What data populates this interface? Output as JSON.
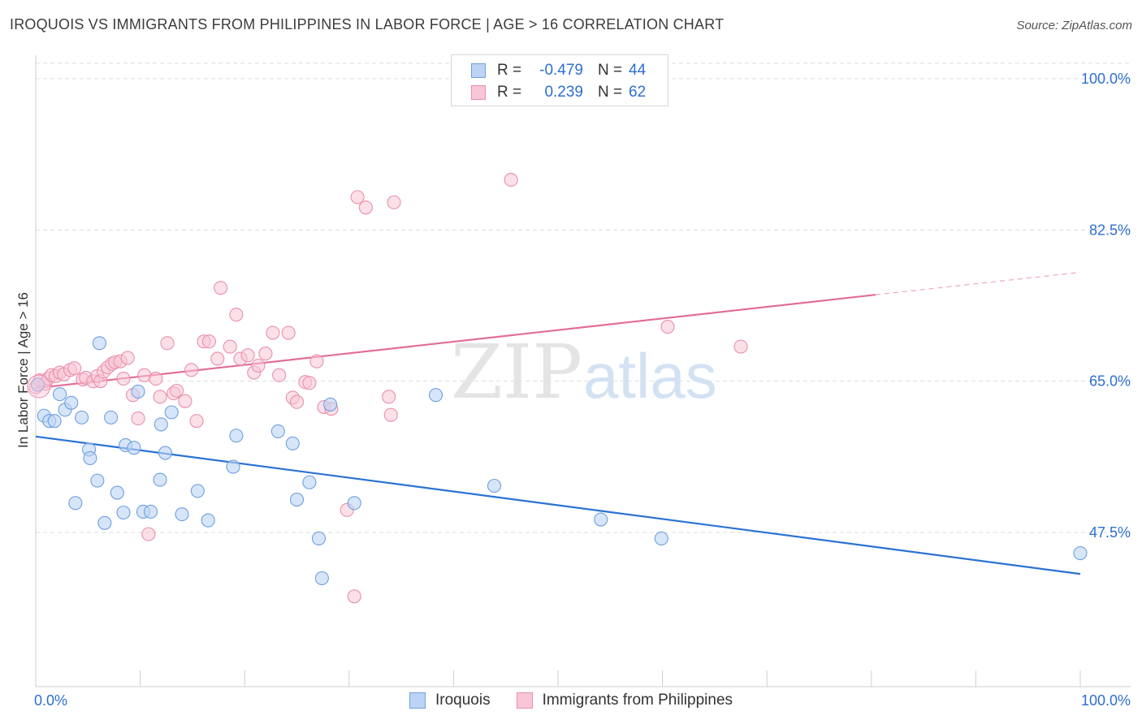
{
  "title": "IROQUOIS VS IMMIGRANTS FROM PHILIPPINES IN LABOR FORCE | AGE > 16 CORRELATION CHART",
  "source": "Source: ZipAtlas.com",
  "watermark": {
    "zip": "ZIP",
    "atlas": "atlas"
  },
  "colors": {
    "blue_fill": "#bcd4f4",
    "blue_stroke": "#6e9fe0",
    "blue_line": "#2a72d4",
    "pink_fill": "#f8c6d6",
    "pink_stroke": "#ea8fab",
    "pink_line": "#e26d98",
    "tick_label": "#2e6fd0",
    "grid": "#dcdcdc"
  },
  "legend": {
    "rows": [
      {
        "r_label": "R =",
        "r_value": "-0.479",
        "n_label": "N =",
        "n_value": "44"
      },
      {
        "r_label": "R =",
        "r_value": "0.239",
        "n_label": "N =",
        "n_value": "62"
      }
    ]
  },
  "bottom_legend": [
    "Iroquois",
    "Immigrants from Philippines"
  ],
  "chart_data": {
    "type": "scatter",
    "xlabel": "",
    "ylabel": "In Labor Force | Age > 16",
    "xlim": [
      0,
      100
    ],
    "ylim": [
      35,
      100
    ],
    "x_tick_labels": [
      "0.0%",
      "100.0%"
    ],
    "y_ticks": [
      100,
      82.5,
      65,
      47.5
    ],
    "y_tick_labels": [
      "100.0%",
      "82.5%",
      "65.0%",
      "47.5%"
    ],
    "grid": true,
    "series": [
      {
        "name": "Iroquois",
        "trend": {
          "x0": 0,
          "y0": 58.6,
          "x1": 100,
          "y1": 42.7
        },
        "points": [
          [
            0.2,
            64.6
          ],
          [
            0.8,
            61.0
          ],
          [
            1.3,
            60.4
          ],
          [
            1.8,
            60.4
          ],
          [
            2.3,
            63.5
          ],
          [
            2.8,
            61.7
          ],
          [
            3.4,
            62.5
          ],
          [
            4.4,
            60.8
          ],
          [
            5.1,
            57.1
          ],
          [
            5.2,
            56.1
          ],
          [
            5.9,
            53.5
          ],
          [
            6.1,
            69.4
          ],
          [
            6.6,
            48.6
          ],
          [
            7.2,
            60.8
          ],
          [
            7.8,
            52.1
          ],
          [
            8.4,
            49.8
          ],
          [
            8.6,
            57.6
          ],
          [
            9.4,
            57.3
          ],
          [
            9.8,
            63.8
          ],
          [
            10.3,
            49.9
          ],
          [
            11.0,
            49.9
          ],
          [
            11.9,
            53.6
          ],
          [
            12.0,
            60.0
          ],
          [
            12.4,
            56.7
          ],
          [
            13.0,
            61.4
          ],
          [
            14.0,
            49.6
          ],
          [
            15.5,
            52.3
          ],
          [
            16.5,
            48.9
          ],
          [
            18.9,
            55.1
          ],
          [
            19.2,
            58.7
          ],
          [
            23.2,
            59.2
          ],
          [
            24.6,
            57.8
          ],
          [
            25.0,
            51.3
          ],
          [
            26.2,
            53.3
          ],
          [
            27.1,
            46.8
          ],
          [
            27.4,
            42.2
          ],
          [
            28.2,
            62.3
          ],
          [
            30.5,
            50.9
          ],
          [
            38.3,
            63.4
          ],
          [
            43.9,
            52.9
          ],
          [
            54.1,
            49.0
          ],
          [
            59.9,
            46.8
          ],
          [
            100.0,
            45.1
          ],
          [
            3.8,
            50.9
          ]
        ]
      },
      {
        "name": "Immigrants from Philippines",
        "trend": {
          "x0": 0,
          "y0": 64.2,
          "x1": 80.4,
          "y1": 75.0,
          "dash_x1": 100,
          "dash_y1": 77.6
        },
        "points": [
          [
            0.0,
            64.3
          ],
          [
            0.4,
            65.1
          ],
          [
            0.9,
            64.7
          ],
          [
            1.2,
            65.3
          ],
          [
            1.5,
            65.7
          ],
          [
            1.9,
            65.6
          ],
          [
            2.3,
            66.0
          ],
          [
            2.7,
            65.8
          ],
          [
            3.3,
            66.3
          ],
          [
            3.7,
            66.5
          ],
          [
            4.5,
            65.2
          ],
          [
            4.8,
            65.4
          ],
          [
            5.5,
            65.0
          ],
          [
            5.9,
            65.6
          ],
          [
            6.2,
            65.0
          ],
          [
            6.5,
            66.1
          ],
          [
            6.9,
            66.6
          ],
          [
            7.3,
            67.0
          ],
          [
            7.6,
            67.2
          ],
          [
            8.1,
            67.3
          ],
          [
            8.4,
            65.3
          ],
          [
            8.8,
            67.7
          ],
          [
            9.3,
            63.4
          ],
          [
            9.8,
            60.7
          ],
          [
            10.4,
            65.7
          ],
          [
            10.8,
            47.3
          ],
          [
            11.5,
            65.3
          ],
          [
            11.9,
            63.2
          ],
          [
            12.6,
            69.4
          ],
          [
            13.2,
            63.6
          ],
          [
            13.5,
            63.9
          ],
          [
            14.3,
            62.7
          ],
          [
            14.9,
            66.3
          ],
          [
            15.4,
            60.4
          ],
          [
            16.1,
            69.6
          ],
          [
            16.6,
            69.6
          ],
          [
            17.4,
            67.6
          ],
          [
            17.7,
            75.8
          ],
          [
            18.6,
            69.0
          ],
          [
            19.2,
            72.7
          ],
          [
            19.6,
            67.6
          ],
          [
            20.3,
            68.0
          ],
          [
            20.9,
            66.0
          ],
          [
            21.3,
            66.8
          ],
          [
            22.0,
            68.2
          ],
          [
            22.7,
            70.6
          ],
          [
            23.3,
            65.7
          ],
          [
            24.2,
            70.6
          ],
          [
            24.6,
            63.1
          ],
          [
            25.0,
            62.6
          ],
          [
            25.8,
            64.9
          ],
          [
            26.2,
            64.8
          ],
          [
            26.9,
            67.3
          ],
          [
            27.6,
            62.0
          ],
          [
            28.3,
            61.8
          ],
          [
            29.8,
            50.1
          ],
          [
            30.5,
            40.1
          ],
          [
            30.8,
            86.3
          ],
          [
            31.6,
            85.1
          ],
          [
            33.8,
            63.2
          ],
          [
            34.0,
            61.1
          ],
          [
            34.3,
            85.7
          ]
        ],
        "extra_points": [
          [
            45.5,
            88.3
          ],
          [
            60.5,
            71.3
          ],
          [
            67.5,
            69.0
          ]
        ]
      }
    ]
  }
}
